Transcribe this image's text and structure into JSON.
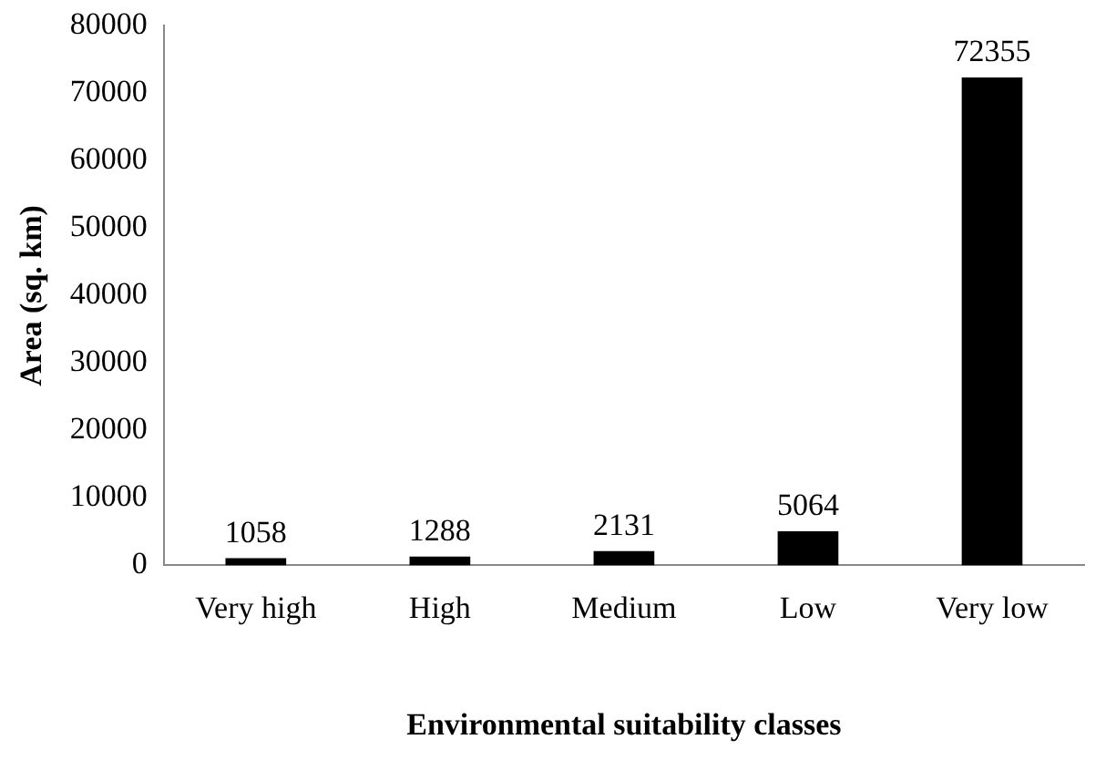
{
  "chart_data": {
    "type": "bar",
    "xlabel": "Environmental suitability classes",
    "ylabel": "Area (sq. km)",
    "categories": [
      "Very high",
      "High",
      "Medium",
      "Low",
      "Very low"
    ],
    "values": [
      1058,
      1288,
      2131,
      5064,
      72355
    ],
    "color": "#000000",
    "ylim": [
      0,
      80000
    ],
    "yticks": [
      0,
      10000,
      20000,
      30000,
      40000,
      50000,
      60000,
      70000,
      80000
    ],
    "grid": false,
    "legend": false,
    "data_labels": true
  }
}
